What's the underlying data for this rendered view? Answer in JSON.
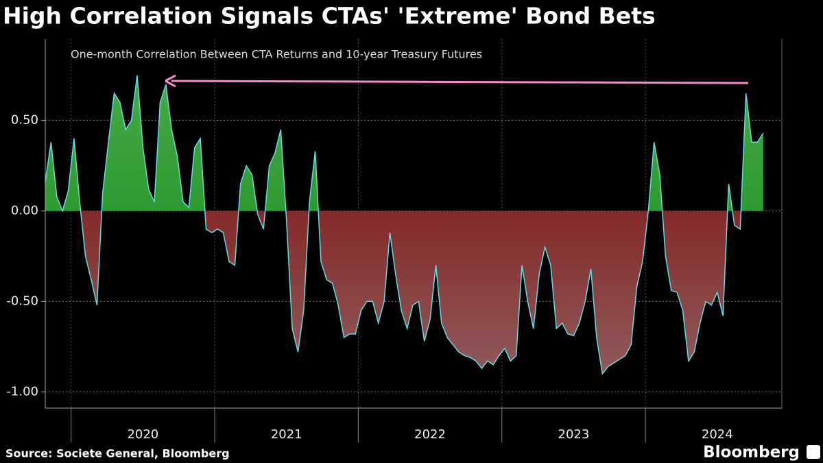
{
  "chart_data": {
    "type": "area",
    "title": "High Correlation Signals CTAs' 'Extreme' Bond Bets",
    "subtitle": "One-month Correlation Between CTA Returns and 10-year Treasury Futures",
    "source": "Source: Societe General, Bloomberg",
    "brand": "Bloomberg",
    "line_color": "#5fe0ea",
    "positive_color": "#0b8a12",
    "negative_color": "#7d0000",
    "grid": true,
    "xlim": [
      2019.82,
      2024.95
    ],
    "xticks": [
      2020,
      2021,
      2022,
      2023,
      2024
    ],
    "ylim": [
      -1.09,
      0.95
    ],
    "yticks": [
      {
        "value": 0.5,
        "label": "0.50"
      },
      {
        "value": 0,
        "label": "0.00"
      },
      {
        "value": -0.5,
        "label": "-0.50"
      },
      {
        "value": -1,
        "label": "-1.00"
      }
    ],
    "x": [
      2019.82,
      2019.86,
      2019.9,
      2019.94,
      2019.98,
      2020.02,
      2020.06,
      2020.1,
      2020.14,
      2020.18,
      2020.22,
      2020.26,
      2020.3,
      2020.34,
      2020.38,
      2020.42,
      2020.46,
      2020.5,
      2020.54,
      2020.58,
      2020.62,
      2020.66,
      2020.7,
      2020.74,
      2020.78,
      2020.82,
      2020.86,
      2020.9,
      2020.94,
      2020.98,
      2021.02,
      2021.06,
      2021.1,
      2021.14,
      2021.18,
      2021.22,
      2021.26,
      2021.3,
      2021.34,
      2021.38,
      2021.42,
      2021.46,
      2021.5,
      2021.54,
      2021.58,
      2021.62,
      2021.66,
      2021.7,
      2021.74,
      2021.78,
      2021.82,
      2021.86,
      2021.9,
      2021.94,
      2021.98,
      2022.02,
      2022.06,
      2022.1,
      2022.14,
      2022.18,
      2022.22,
      2022.26,
      2022.3,
      2022.34,
      2022.38,
      2022.42,
      2022.46,
      2022.5,
      2022.54,
      2022.58,
      2022.62,
      2022.66,
      2022.7,
      2022.74,
      2022.78,
      2022.82,
      2022.86,
      2022.9,
      2022.94,
      2022.98,
      2023.02,
      2023.06,
      2023.1,
      2023.14,
      2023.18,
      2023.22,
      2023.26,
      2023.3,
      2023.34,
      2023.38,
      2023.42,
      2023.46,
      2023.5,
      2023.54,
      2023.58,
      2023.62,
      2023.66,
      2023.7,
      2023.74,
      2023.78,
      2023.82,
      2023.86,
      2023.9,
      2023.94,
      2023.98,
      2024.02,
      2024.06,
      2024.1,
      2024.14,
      2024.18,
      2024.22,
      2024.26,
      2024.3,
      2024.34,
      2024.38,
      2024.42,
      2024.46,
      2024.5,
      2024.54,
      2024.58,
      2024.62,
      2024.66,
      2024.7,
      2024.74,
      2024.78,
      2024.82
    ],
    "values": [
      0.16,
      0.38,
      0.08,
      0.0,
      0.11,
      0.4,
      0.05,
      -0.25,
      -0.38,
      -0.52,
      0.1,
      0.38,
      0.65,
      0.6,
      0.45,
      0.5,
      0.75,
      0.35,
      0.12,
      0.05,
      0.6,
      0.7,
      0.45,
      0.3,
      0.05,
      0.02,
      0.35,
      0.4,
      -0.1,
      -0.12,
      -0.1,
      -0.12,
      -0.28,
      -0.3,
      0.15,
      0.25,
      0.2,
      -0.02,
      -0.1,
      0.25,
      0.32,
      0.45,
      -0.05,
      -0.65,
      -0.78,
      -0.55,
      0.05,
      0.33,
      -0.28,
      -0.38,
      -0.4,
      -0.52,
      -0.7,
      -0.68,
      -0.68,
      -0.55,
      -0.5,
      -0.5,
      -0.62,
      -0.5,
      -0.12,
      -0.35,
      -0.55,
      -0.65,
      -0.52,
      -0.5,
      -0.72,
      -0.6,
      -0.3,
      -0.62,
      -0.7,
      -0.74,
      -0.78,
      -0.8,
      -0.81,
      -0.83,
      -0.87,
      -0.83,
      -0.85,
      -0.8,
      -0.76,
      -0.83,
      -0.8,
      -0.3,
      -0.5,
      -0.65,
      -0.35,
      -0.2,
      -0.3,
      -0.65,
      -0.62,
      -0.68,
      -0.69,
      -0.62,
      -0.5,
      -0.32,
      -0.7,
      -0.9,
      -0.86,
      -0.84,
      -0.82,
      -0.8,
      -0.74,
      -0.42,
      -0.28,
      0.0,
      0.38,
      0.2,
      -0.25,
      -0.44,
      -0.45,
      -0.55,
      -0.83,
      -0.78,
      -0.62,
      -0.5,
      -0.52,
      -0.45,
      -0.58,
      0.15,
      -0.08,
      -0.1,
      0.65,
      0.38,
      0.38,
      0.43
    ]
  }
}
